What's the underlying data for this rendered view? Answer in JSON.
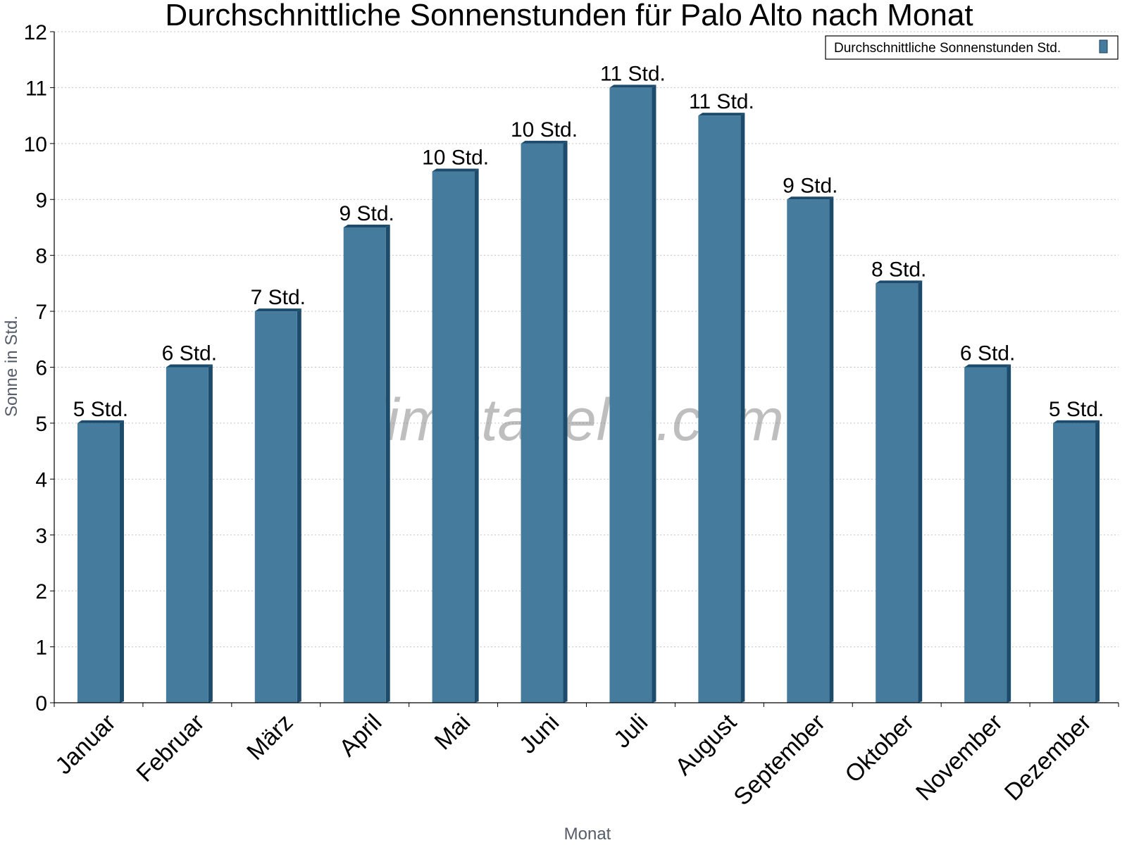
{
  "chart_data": {
    "type": "bar",
    "title": "Durchschnittliche Sonnenstunden für Palo Alto nach Monat",
    "xlabel": "Monat",
    "ylabel": "Sonne in Std.",
    "ylim": [
      0,
      12
    ],
    "yticks": [
      0,
      1,
      2,
      3,
      4,
      5,
      6,
      7,
      8,
      9,
      10,
      11,
      12
    ],
    "categories": [
      "Januar",
      "Februar",
      "März",
      "April",
      "Mai",
      "Juni",
      "Juli",
      "August",
      "September",
      "Oktober",
      "November",
      "Dezember"
    ],
    "series": [
      {
        "name": "Durchschnittliche Sonnenstunden Std.",
        "color": "#457b9d",
        "values": [
          5,
          6,
          7,
          8.5,
          9.5,
          10,
          11,
          10.5,
          9,
          7.5,
          6,
          5
        ],
        "labels": [
          "5 Std.",
          "6 Std.",
          "7 Std.",
          "9 Std.",
          "10 Std.",
          "10 Std.",
          "11 Std.",
          "11 Std.",
          "9 Std.",
          "8 Std.",
          "6 Std.",
          "5 Std."
        ]
      }
    ],
    "grid": true,
    "legend_position": "top-right",
    "watermark": "klimatabelle.com"
  }
}
